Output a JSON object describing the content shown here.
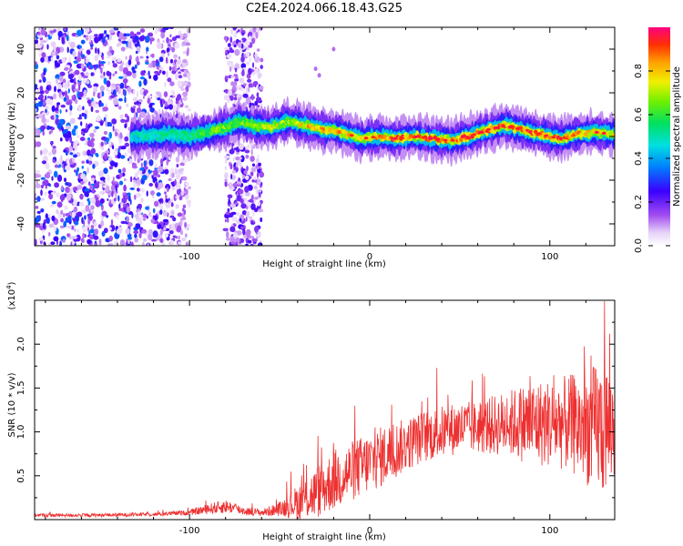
{
  "title": "C2E4.2024.066.18.43.G25",
  "colors": {
    "snr_line": "#ee3030",
    "frame": "#000000"
  },
  "chart_data": [
    {
      "type": "heatmap",
      "xlabel": "Height of straight line (km)",
      "ylabel": "Frequency (Hz)",
      "xlim": [
        -186,
        136
      ],
      "ylim": [
        -50,
        50
      ],
      "xticks": [
        -100,
        0,
        100
      ],
      "xtick_labels": [
        "-100",
        "0",
        "100"
      ],
      "yticks": [
        -40,
        -20,
        0,
        20,
        40
      ],
      "ytick_labels": [
        "-40",
        "-20",
        "0",
        "20",
        "40"
      ],
      "colorbar": {
        "label": "Normalized spectral amplitude",
        "range": [
          0,
          1
        ],
        "ticks": [
          0.0,
          0.2,
          0.4,
          0.6,
          0.8
        ],
        "tick_labels": [
          "0.0",
          "0.2",
          "0.4",
          "0.6",
          "0.8"
        ]
      },
      "ridge": {
        "description_points_x": [
          -130,
          -110,
          -100,
          -90,
          -80,
          -72,
          -65,
          -55,
          -45,
          -35,
          -25,
          -15,
          -5,
          5,
          15,
          25,
          35,
          45,
          55,
          65,
          75,
          85,
          95,
          105,
          115,
          125,
          135
        ],
        "frequency_hz": [
          0,
          1,
          0,
          2,
          4,
          7,
          5,
          4,
          7,
          5,
          3,
          2,
          -1,
          0,
          -1,
          0,
          -1,
          -2,
          0,
          3,
          5,
          3,
          1,
          -1,
          1,
          2,
          1
        ],
        "peak_amplitude": [
          0.5,
          0.55,
          0.6,
          0.65,
          0.7,
          0.7,
          0.7,
          0.8,
          0.7,
          0.85,
          0.9,
          0.85,
          0.85,
          0.9,
          0.95,
          0.9,
          0.95,
          0.9,
          0.95,
          0.95,
          0.9,
          0.95,
          0.95,
          0.95,
          0.9,
          0.85,
          0.8
        ]
      },
      "noise_regions_x": [
        [
          -186,
          -100
        ],
        [
          -80,
          -60
        ]
      ]
    },
    {
      "type": "line",
      "xlabel": "Height of straight line (km)",
      "ylabel": "SNR (10 * v/v)",
      "y_multiplier_label": "(x10",
      "y_multiplier_exp": "4",
      "xlim": [
        -186,
        136
      ],
      "ylim": [
        0,
        2.5
      ],
      "xticks": [
        -100,
        0,
        100
      ],
      "xtick_labels": [
        "-100",
        "0",
        "100"
      ],
      "yticks": [
        0.5,
        1.0,
        1.5,
        2.0
      ],
      "ytick_labels": [
        "0.5",
        "1.0",
        "1.5",
        "2.0"
      ],
      "series": [
        {
          "x_envelope": [
            -186,
            -150,
            -120,
            -100,
            -90,
            -80,
            -75,
            -70,
            -60,
            -50,
            -40,
            -30,
            -20,
            -10,
            0,
            10,
            20,
            30,
            40,
            50,
            60,
            70,
            80,
            90,
            100,
            110,
            120,
            130,
            136
          ],
          "y_mean": [
            0.05,
            0.05,
            0.06,
            0.08,
            0.12,
            0.15,
            0.13,
            0.1,
            0.08,
            0.12,
            0.2,
            0.3,
            0.45,
            0.55,
            0.65,
            0.75,
            0.85,
            0.95,
            1.0,
            1.05,
            1.05,
            1.08,
            1.1,
            1.1,
            1.1,
            1.1,
            1.05,
            1.05,
            1.05
          ],
          "y_spread": [
            0.02,
            0.02,
            0.02,
            0.03,
            0.06,
            0.08,
            0.06,
            0.05,
            0.04,
            0.08,
            0.2,
            0.3,
            0.35,
            0.35,
            0.35,
            0.35,
            0.3,
            0.3,
            0.3,
            0.3,
            0.3,
            0.35,
            0.4,
            0.5,
            0.5,
            0.55,
            0.65,
            0.8,
            0.6
          ]
        }
      ]
    }
  ]
}
